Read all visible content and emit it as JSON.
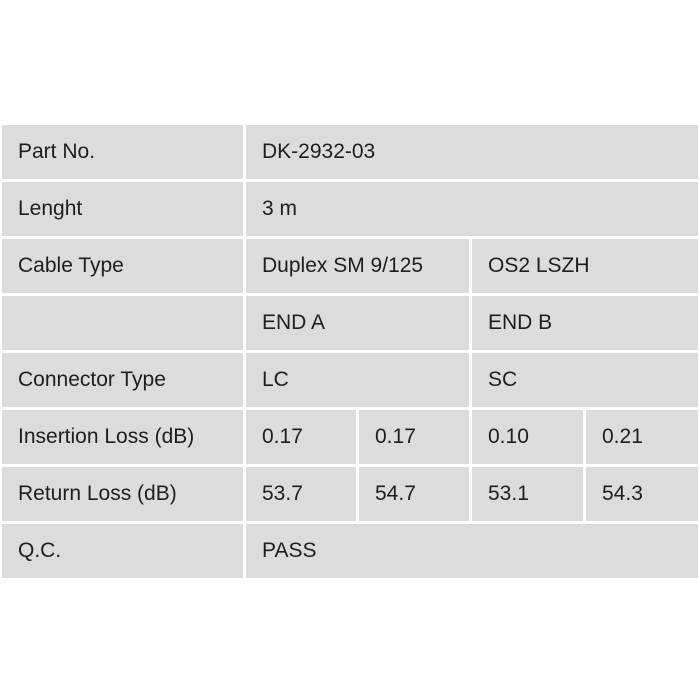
{
  "rows": {
    "part_no": {
      "label": "Part No.",
      "value": "DK-2932-03"
    },
    "length": {
      "label": "Lenght",
      "value": "3 m"
    },
    "cable_type": {
      "label": "Cable Type",
      "value_a": "Duplex SM 9/125",
      "value_b": "OS2 LSZH"
    },
    "ends": {
      "label": "",
      "end_a": "END A",
      "end_b": "END B"
    },
    "connector_type": {
      "label": "Connector Type",
      "end_a": "LC",
      "end_b": "SC"
    },
    "insertion_loss": {
      "label": "Insertion Loss (dB)",
      "values": [
        "0.17",
        "0.17",
        "0.10",
        "0.21"
      ]
    },
    "return_loss": {
      "label": "Return Loss (dB)",
      "values": [
        "53.7",
        "54.7",
        "53.1",
        "54.3"
      ]
    },
    "qc": {
      "label": "Q.C.",
      "value": "PASS"
    }
  }
}
